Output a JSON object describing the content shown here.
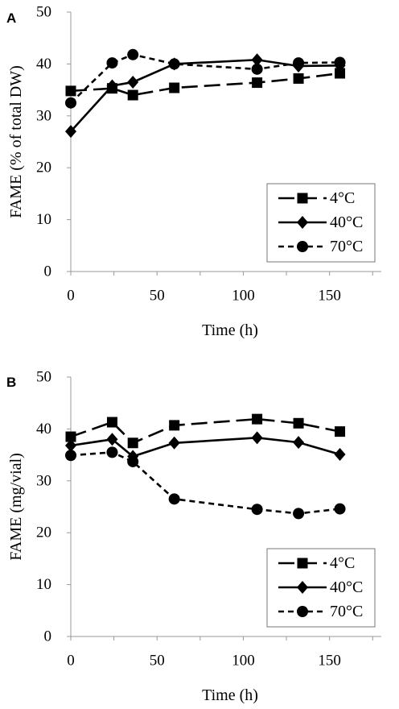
{
  "chart_data": [
    {
      "panel": "A",
      "type": "line",
      "xlabel": "Time (h)",
      "ylabel": "FAME (% of total DW)",
      "xlim": [
        0,
        180
      ],
      "ylim": [
        0,
        50
      ],
      "xticks": [
        0,
        50,
        100,
        150
      ],
      "yticks": [
        0,
        10,
        20,
        30,
        40,
        50
      ],
      "grid": false,
      "legend_position": "bottom-right",
      "series": [
        {
          "name": "4°C",
          "line": "long-dash",
          "marker": "square",
          "x": [
            0,
            24,
            36,
            60,
            108,
            132,
            156
          ],
          "y": [
            34.8,
            35.3,
            34.0,
            35.4,
            36.4,
            37.2,
            38.2
          ]
        },
        {
          "name": "40°C",
          "line": "solid",
          "marker": "diamond",
          "x": [
            0,
            24,
            36,
            60,
            108,
            132,
            156
          ],
          "y": [
            27.0,
            35.8,
            36.5,
            40.0,
            40.8,
            39.6,
            39.7
          ]
        },
        {
          "name": "70°C",
          "line": "dash",
          "marker": "circle",
          "x": [
            0,
            24,
            36,
            60,
            108,
            132,
            156
          ],
          "y": [
            32.5,
            40.2,
            41.8,
            40.0,
            39.0,
            40.2,
            40.3
          ]
        }
      ]
    },
    {
      "panel": "B",
      "type": "line",
      "xlabel": "Time (h)",
      "ylabel": "FAME (mg/vial)",
      "xlim": [
        0,
        180
      ],
      "ylim": [
        0,
        50
      ],
      "xticks": [
        0,
        50,
        100,
        150
      ],
      "yticks": [
        0,
        10,
        20,
        30,
        40,
        50
      ],
      "grid": false,
      "legend_position": "bottom-right",
      "series": [
        {
          "name": "4°C",
          "line": "long-dash",
          "marker": "square",
          "x": [
            0,
            24,
            36,
            60,
            108,
            132,
            156
          ],
          "y": [
            38.5,
            41.3,
            37.3,
            40.7,
            41.9,
            41.1,
            39.5
          ]
        },
        {
          "name": "40°C",
          "line": "solid",
          "marker": "diamond",
          "x": [
            0,
            24,
            36,
            60,
            108,
            132,
            156
          ],
          "y": [
            36.8,
            38.0,
            34.7,
            37.3,
            38.3,
            37.4,
            35.1
          ]
        },
        {
          "name": "70°C",
          "line": "dash",
          "marker": "circle",
          "x": [
            0,
            24,
            36,
            60,
            108,
            132,
            156
          ],
          "y": [
            34.9,
            35.5,
            33.7,
            26.5,
            24.5,
            23.7,
            24.6
          ]
        }
      ]
    }
  ]
}
